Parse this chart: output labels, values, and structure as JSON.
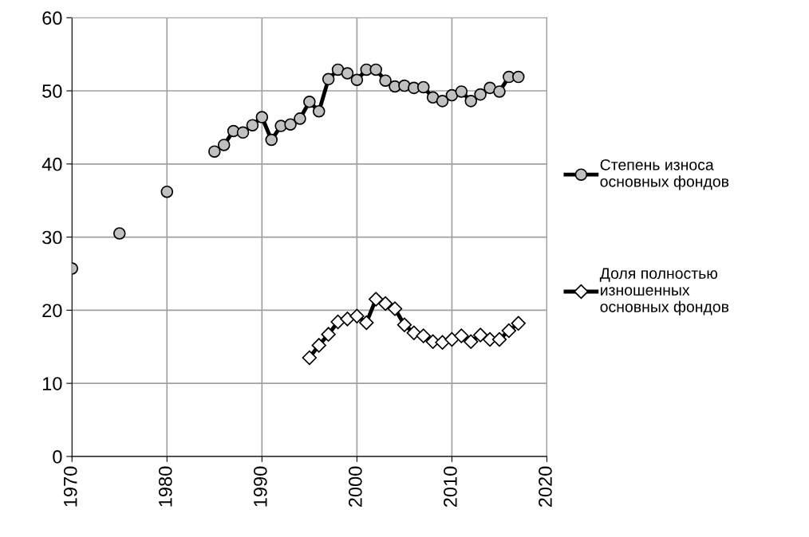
{
  "chart_data": {
    "type": "line",
    "xlim": [
      1970,
      2020
    ],
    "xticks": [
      1970,
      1980,
      1990,
      2000,
      2010,
      2020
    ],
    "ylim": [
      0,
      60
    ],
    "yticks": [
      0,
      10,
      20,
      30,
      40,
      50,
      60
    ],
    "grid": true,
    "legend": "right",
    "line_style": "solid",
    "series": [
      {
        "name": "Степень износа\nосновных фондов",
        "color": "#c0c0c0",
        "marker": "circle",
        "x": [
          1970,
          1972,
          1975,
          1977,
          1980,
          1982,
          1985,
          1986,
          1987,
          1988,
          1989,
          1990,
          1991,
          1992,
          1993,
          1994,
          1995,
          1996,
          1997,
          1998,
          1999,
          2000,
          2001,
          2002,
          2003,
          2004,
          2005,
          2006,
          2007,
          2008,
          2009,
          2010,
          2011,
          2012,
          2013,
          2014,
          2015,
          2016,
          2017
        ],
        "values": [
          25.7,
          null,
          30.5,
          null,
          36.2,
          null,
          41.7,
          42.6,
          44.5,
          44.3,
          45.3,
          46.4,
          43.3,
          45.2,
          45.4,
          46.2,
          48.5,
          47.2,
          51.6,
          52.9,
          52.4,
          51.5,
          52.9,
          52.9,
          51.4,
          50.6,
          50.7,
          50.4,
          50.5,
          49.1,
          48.6,
          49.4,
          49.9,
          48.6,
          49.5,
          50.4,
          49.9,
          51.9,
          51.9
        ]
      },
      {
        "name": "Доля полностью\nизношенных\nосновных фондов",
        "color": "#ffffff",
        "marker": "diamond",
        "x": [
          1995,
          1996,
          1997,
          1998,
          1999,
          2000,
          2001,
          2002,
          2003,
          2004,
          2005,
          2006,
          2007,
          2008,
          2009,
          2010,
          2011,
          2012,
          2013,
          2014,
          2015,
          2016,
          2017
        ],
        "values": [
          13.5,
          15.2,
          16.7,
          18.4,
          18.8,
          19.2,
          18.3,
          21.5,
          20.9,
          20.2,
          18.0,
          16.9,
          16.5,
          15.7,
          15.6,
          16.0,
          16.5,
          15.7,
          16.6,
          16.0,
          16.0,
          17.2,
          18.2
        ]
      }
    ]
  }
}
